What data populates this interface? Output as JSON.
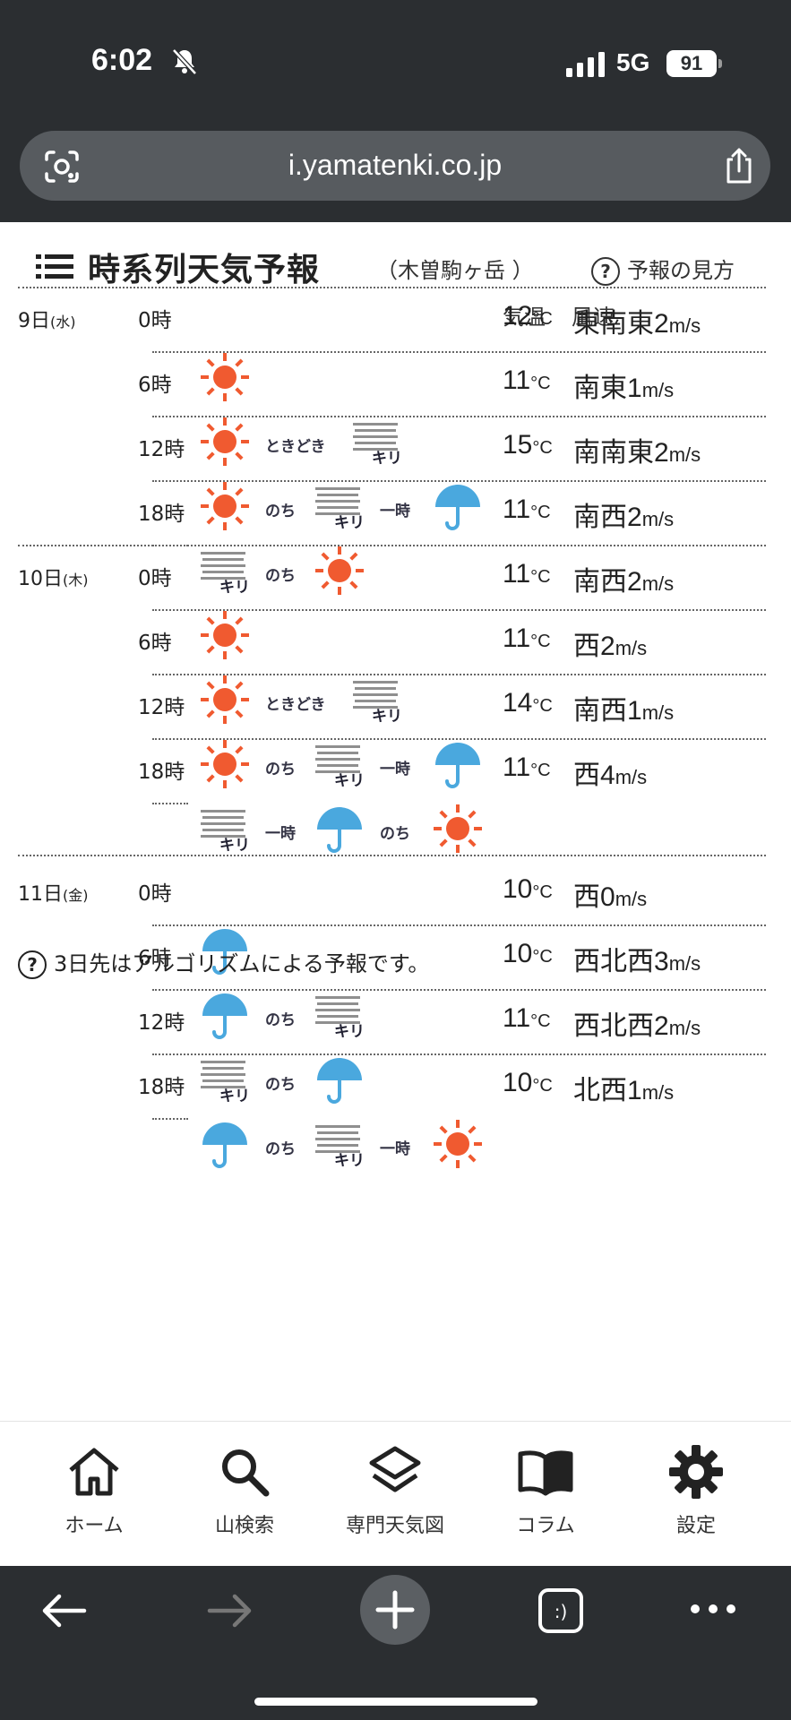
{
  "status": {
    "time": "6:02",
    "network": "5G",
    "battery": "91"
  },
  "browser": {
    "url": "i.yamatenki.co.jp"
  },
  "header": {
    "title": "時系列天気予報",
    "place": "（木曽駒ヶ岳 ）",
    "help_label": "予報の見方",
    "col_temp": "気温",
    "col_wind": "風速"
  },
  "note": "3日先はアルゴリズムによる予報です。",
  "days": [
    {
      "date": "9日",
      "dow": "(水)",
      "rows": [
        {
          "hour": "0時",
          "temp": "12",
          "dir": "東南東",
          "speed": "2"
        },
        {
          "hour": "6時",
          "temp": "11",
          "dir": "南東",
          "speed": "1"
        },
        {
          "hour": "12時",
          "temp": "15",
          "dir": "南南東",
          "speed": "2"
        },
        {
          "hour": "18時",
          "temp": "11",
          "dir": "南西",
          "speed": "2"
        }
      ]
    },
    {
      "date": "10日",
      "dow": "(木)",
      "rows": [
        {
          "hour": "0時",
          "temp": "11",
          "dir": "南西",
          "speed": "2"
        },
        {
          "hour": "6時",
          "temp": "11",
          "dir": "西",
          "speed": "2"
        },
        {
          "hour": "12時",
          "temp": "14",
          "dir": "南西",
          "speed": "1"
        },
        {
          "hour": "18時",
          "temp": "11",
          "dir": "西",
          "speed": "4"
        }
      ]
    },
    {
      "date": "11日",
      "dow": "(金)",
      "rows": [
        {
          "hour": "0時",
          "temp": "10",
          "dir": "西",
          "speed": "0"
        },
        {
          "hour": "6時",
          "temp": "10",
          "dir": "西北西",
          "speed": "3"
        },
        {
          "hour": "12時",
          "temp": "11",
          "dir": "西北西",
          "speed": "2"
        },
        {
          "hour": "18時",
          "temp": "10",
          "dir": "北西",
          "speed": "1"
        }
      ]
    }
  ],
  "units": {
    "celsius": "°C",
    "ms": "m/s"
  },
  "weather": {
    "kiri": "キリ",
    "tokidoki": "ときどき",
    "nochi": "のち",
    "ichiji": "一時",
    "colors": {
      "sun": "#f05a30",
      "umbrella": "#4aa8de",
      "fog": "#8f8f8f"
    }
  },
  "tabs": [
    {
      "label": "ホーム",
      "icon": "home-icon"
    },
    {
      "label": "山検索",
      "icon": "search-icon"
    },
    {
      "label": "専門天気図",
      "icon": "layers-icon"
    },
    {
      "label": "コラム",
      "icon": "book-icon"
    },
    {
      "label": "設定",
      "icon": "gear-icon"
    }
  ]
}
